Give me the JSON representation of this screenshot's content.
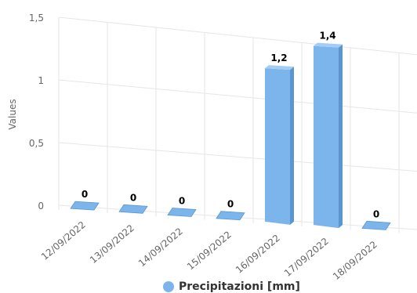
{
  "chart_data": {
    "type": "bar",
    "categories": [
      "12/09/2022",
      "13/09/2022",
      "14/09/2022",
      "15/09/2022",
      "16/09/2022",
      "17/09/2022",
      "18/09/2022"
    ],
    "series": [
      {
        "name": "Precipitazioni [mm]",
        "values": [
          0,
          0,
          0,
          0,
          1.2,
          1.4,
          0
        ]
      }
    ],
    "data_labels": [
      "0",
      "0",
      "0",
      "0",
      "1,2",
      "1,4",
      "0"
    ],
    "ylabel": "Values",
    "ylim": [
      0,
      1.5
    ],
    "yticks": [
      0,
      0.5,
      1,
      1.5
    ],
    "ytick_labels": [
      "0",
      "0,5",
      "1",
      "1,5"
    ],
    "grid": true,
    "legend_position": "bottom",
    "style": "3d-perspective columns",
    "colors": {
      "bar": "#7cb5ec",
      "bar_side": "#5a96d2",
      "bar_top": "#a3cdf4",
      "grid": "#e6e6e6",
      "text": "#666666"
    }
  }
}
